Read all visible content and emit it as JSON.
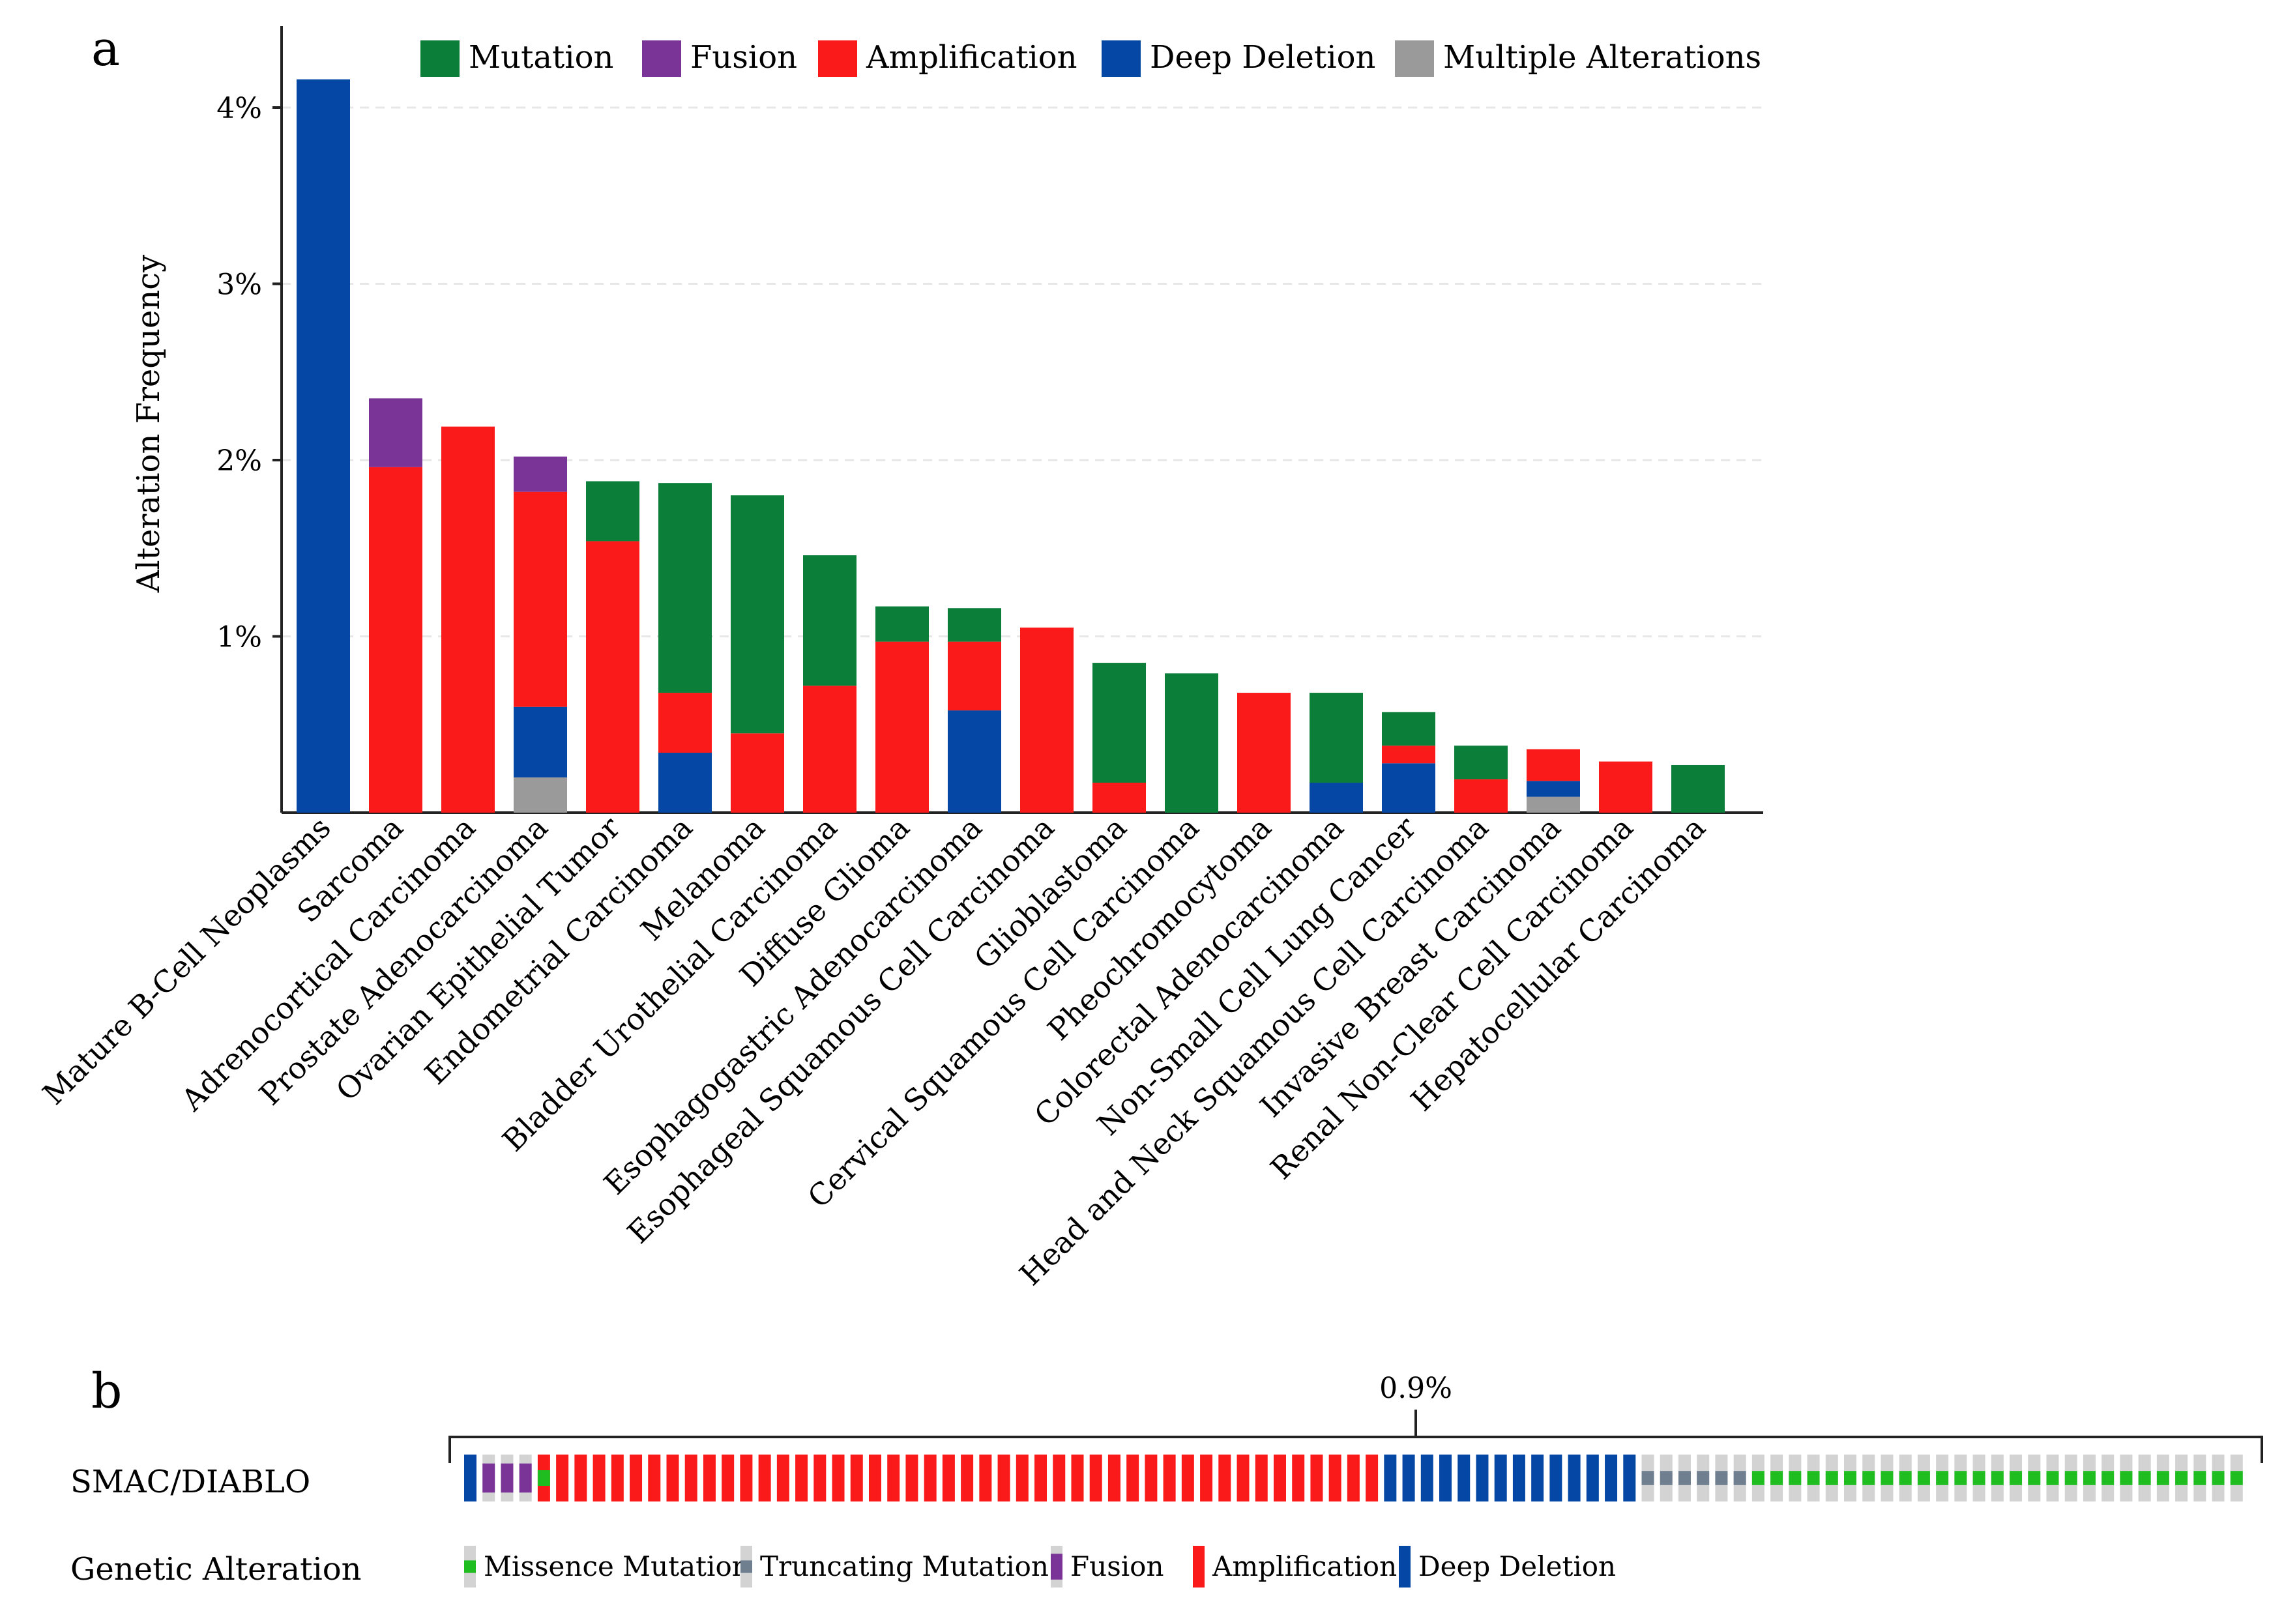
{
  "panels": {
    "a": "a",
    "b": "b"
  },
  "colors": {
    "Mutation": "#0b7f3a",
    "Fusion": "#7a3497",
    "Amplification": "#fa1a1a",
    "Deep Deletion": "#0547a5",
    "Multiple Alterations": "#9a9a9a",
    "Missence Mutation": "#1fbd1f",
    "Truncating Mutation": "#6f7f8f",
    "OncoprintBackground": "#d3d3d3",
    "Gridline": "#e7e7e7",
    "Axis": "#222222"
  },
  "chart_data": [
    {
      "type": "bar",
      "stacked": true,
      "title": "",
      "xlabel": "",
      "ylabel": "Alteration Frequency",
      "ylim": [
        0,
        4.5
      ],
      "yticks": [
        "1%",
        "2%",
        "3%",
        "4%"
      ],
      "ytick_values": [
        1,
        2,
        3,
        4
      ],
      "grid": true,
      "legend_position": "top",
      "legend": [
        "Mutation",
        "Fusion",
        "Amplification",
        "Deep Deletion",
        "Multiple Alterations"
      ],
      "categories": [
        "Mature B-Cell Neoplasms",
        "Sarcoma",
        "Adrenocortical Carcinoma",
        "Prostate Adenocarcinoma",
        "Ovarian Epithelial Tumor",
        "Endometrial Carcinoma",
        "Melanoma",
        "Bladder Urothelial Carcinoma",
        "Diffuse Glioma",
        "Esophagogastric Adenocarcinoma",
        "Esophageal Squamous Cell Carcinoma",
        "Glioblastoma",
        "Cervical Squamous Cell Carcinoma",
        "Pheochromocytoma",
        "Colorectal Adenocarcinoma",
        "Non-Small Cell Lung Cancer",
        "Head and Neck Squamous Cell Carcinoma",
        "Invasive Breast Carcinoma",
        "Renal Non-Clear Cell Carcinoma",
        "Hepatocellular Carcinoma"
      ],
      "series": [
        {
          "name": "Multiple Alterations",
          "values": [
            0,
            0,
            0,
            0.2,
            0,
            0,
            0,
            0,
            0,
            0,
            0,
            0,
            0,
            0,
            0,
            0,
            0,
            0.09,
            0,
            0
          ]
        },
        {
          "name": "Deep Deletion",
          "values": [
            4.16,
            0,
            0,
            0.4,
            0,
            0.34,
            0,
            0,
            0,
            0.58,
            0,
            0,
            0,
            0,
            0.17,
            0.28,
            0,
            0.09,
            0,
            0
          ]
        },
        {
          "name": "Amplification",
          "values": [
            0,
            1.96,
            2.19,
            1.22,
            1.54,
            0.34,
            0.45,
            0.72,
            0.97,
            0.39,
            1.05,
            0.17,
            0,
            0.68,
            0,
            0.1,
            0.19,
            0.18,
            0.29,
            0
          ]
        },
        {
          "name": "Fusion",
          "values": [
            0,
            0.39,
            0,
            0.2,
            0,
            0,
            0,
            0,
            0,
            0,
            0,
            0,
            0,
            0,
            0,
            0,
            0,
            0,
            0,
            0
          ]
        },
        {
          "name": "Mutation",
          "values": [
            0,
            0,
            0,
            0,
            0.34,
            1.19,
            1.35,
            0.74,
            0.2,
            0.19,
            0,
            0.68,
            0.79,
            0,
            0.51,
            0.19,
            0.19,
            0,
            0,
            0.27
          ]
        }
      ]
    },
    {
      "type": "oncoprint",
      "gene": "SMAC/DIABLO",
      "percent_label": "0.9%",
      "row_label": "Genetic Alteration",
      "samples": [
        {
          "alteration": "Deep Deletion",
          "count": 1
        },
        {
          "alteration": "Fusion",
          "count": 3
        },
        {
          "alteration": "Amplification+Missence Mutation",
          "count": 1
        },
        {
          "alteration": "Amplification",
          "count": 45
        },
        {
          "alteration": "Deep Deletion",
          "count": 14
        },
        {
          "alteration": "Truncating Mutation",
          "count": 6
        },
        {
          "alteration": "Missence Mutation",
          "count": 27
        }
      ],
      "legend": [
        {
          "label": "Missence Mutation",
          "key": "Missence Mutation"
        },
        {
          "label": "Truncating Mutation",
          "key": "Truncating Mutation"
        },
        {
          "label": "Fusion",
          "key": "Fusion"
        },
        {
          "label": "Amplification",
          "key": "Amplification"
        },
        {
          "label": "Deep Deletion",
          "key": "Deep Deletion"
        }
      ]
    }
  ]
}
